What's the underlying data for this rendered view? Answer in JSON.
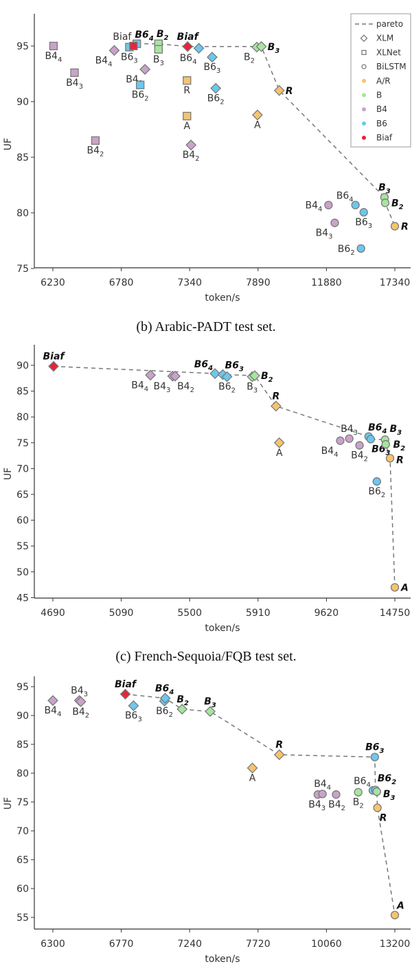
{
  "legend": {
    "placement": "top-right",
    "entries": [
      {
        "label": "pareto",
        "kind": "line"
      },
      {
        "label": "XLM",
        "kind": "diamond"
      },
      {
        "label": "XLNet",
        "kind": "square"
      },
      {
        "label": "BiLSTM",
        "kind": "circle"
      },
      {
        "label": "A/R",
        "kind": "dot",
        "group": "A/R"
      },
      {
        "label": "B",
        "kind": "dot",
        "group": "B"
      },
      {
        "label": "B4",
        "kind": "dot",
        "group": "B4"
      },
      {
        "label": "B6",
        "kind": "dot",
        "group": "B6"
      },
      {
        "label": "Biaf",
        "kind": "dot",
        "group": "Biaf"
      }
    ]
  },
  "colors": {
    "A/R": "#f7c46c",
    "B": "#a8e4a0",
    "B4": "#c9a3c9",
    "B6": "#6cc8ef",
    "Biaf": "#e2263c",
    "edge": "#7a7a7a",
    "pareto": "#777777"
  },
  "markers": {
    "XLM": "diamond",
    "XLNet": "square",
    "BiLSTM": "circle"
  },
  "chart_data": [
    {
      "type": "scatter",
      "title": "",
      "xlabel": "token/s",
      "ylabel": "UF",
      "xticks": [
        6230,
        6780,
        7340,
        7890,
        11880,
        17340
      ],
      "xscale": "piecewise (evenly spaced ticks)",
      "yticks": [
        75,
        80,
        85,
        90,
        95
      ],
      "ylim": [
        75,
        97.9
      ],
      "grid": false,
      "points": [
        {
          "m": "XLNet",
          "g": "B4",
          "t": "B4",
          "s": "4",
          "x": 6235,
          "y": 95.0,
          "b": false,
          "pos": "below"
        },
        {
          "m": "XLNet",
          "g": "B4",
          "t": "B4",
          "s": "3",
          "x": 6404,
          "y": 92.6,
          "b": false,
          "pos": "below"
        },
        {
          "m": "XLNet",
          "g": "B4",
          "t": "B4",
          "s": "2",
          "x": 6572,
          "y": 86.5,
          "b": false,
          "pos": "below"
        },
        {
          "m": "XLM",
          "g": "B4",
          "t": "B4",
          "s": "4",
          "x": 6724,
          "y": 94.6,
          "b": false,
          "pos": "below-left"
        },
        {
          "m": "XLNet",
          "g": "B6",
          "t": "B6",
          "s": "3",
          "x": 6846,
          "y": 94.9,
          "b": false,
          "pos": "below"
        },
        {
          "m": "XLNet",
          "g": "B6",
          "t": "B6",
          "s": "4",
          "x": 6907,
          "y": 95.2,
          "b": true,
          "pos": "above-right"
        },
        {
          "m": "XLNet",
          "g": "Biaf",
          "t": "Biaf",
          "s": "",
          "x": 6880,
          "y": 95.0,
          "b": false,
          "pos": "above-left"
        },
        {
          "m": "XLM",
          "g": "B4",
          "t": "B4",
          "s": "3",
          "x": 6974,
          "y": 92.9,
          "b": false,
          "pos": "below-left"
        },
        {
          "m": "XLNet",
          "g": "B6",
          "t": "B6",
          "s": "2",
          "x": 6935,
          "y": 91.5,
          "b": false,
          "pos": "below"
        },
        {
          "m": "XLNet",
          "g": "B",
          "t": "B",
          "s": "2",
          "x": 7085,
          "y": 95.2,
          "b": true,
          "pos": "above"
        },
        {
          "m": "XLNet",
          "g": "B",
          "t": "B",
          "s": "3",
          "x": 7085,
          "y": 94.7,
          "b": false,
          "pos": "below"
        },
        {
          "m": "XLNet",
          "g": "A/R",
          "t": "R",
          "s": "",
          "x": 7318,
          "y": 91.9,
          "b": false,
          "pos": "below"
        },
        {
          "m": "XLNet",
          "g": "A/R",
          "t": "A",
          "s": "",
          "x": 7318,
          "y": 88.7,
          "b": false,
          "pos": "below"
        },
        {
          "m": "XLM",
          "g": "Biaf",
          "t": "Biaf",
          "s": "",
          "x": 7323,
          "y": 94.95,
          "b": true,
          "pos": "above"
        },
        {
          "m": "XLM",
          "g": "B6",
          "t": "B6",
          "s": "4",
          "x": 7414,
          "y": 94.8,
          "b": false,
          "pos": "below-left"
        },
        {
          "m": "XLM",
          "g": "B6",
          "t": "B6",
          "s": "3",
          "x": 7521,
          "y": 94.0,
          "b": false,
          "pos": "below"
        },
        {
          "m": "XLM",
          "g": "B6",
          "t": "B6",
          "s": "2",
          "x": 7550,
          "y": 91.2,
          "b": false,
          "pos": "below"
        },
        {
          "m": "XLM",
          "g": "B4",
          "t": "B4",
          "s": "2",
          "x": 7351,
          "y": 86.1,
          "b": false,
          "pos": "below"
        },
        {
          "m": "XLM",
          "g": "A/R",
          "t": "A",
          "s": "",
          "x": 7885,
          "y": 88.8,
          "b": false,
          "pos": "below"
        },
        {
          "m": "XLM",
          "g": "B",
          "t": "B",
          "s": "2",
          "x": 7880,
          "y": 94.9,
          "b": false,
          "pos": "below-left"
        },
        {
          "m": "XLM",
          "g": "B",
          "t": "B",
          "s": "3",
          "x": 8084,
          "y": 94.95,
          "b": true,
          "pos": "right"
        },
        {
          "m": "XLM",
          "g": "A/R",
          "t": "R",
          "s": "",
          "x": 9130,
          "y": 91.0,
          "b": true,
          "pos": "right"
        },
        {
          "m": "BiLSTM",
          "g": "B4",
          "t": "B4",
          "s": "4",
          "x": 12045,
          "y": 80.7,
          "b": false,
          "pos": "left"
        },
        {
          "m": "BiLSTM",
          "g": "B4",
          "t": "B4",
          "s": "3",
          "x": 12542,
          "y": 79.1,
          "b": false,
          "pos": "below-left"
        },
        {
          "m": "BiLSTM",
          "g": "B6",
          "t": "B6",
          "s": "4",
          "x": 14196,
          "y": 80.7,
          "b": false,
          "pos": "above-left"
        },
        {
          "m": "BiLSTM",
          "g": "B6",
          "t": "B6",
          "s": "3",
          "x": 14857,
          "y": 80.05,
          "b": false,
          "pos": "below"
        },
        {
          "m": "BiLSTM",
          "g": "B6",
          "t": "B6",
          "s": "2",
          "x": 14637,
          "y": 76.8,
          "b": false,
          "pos": "left"
        },
        {
          "m": "BiLSTM",
          "g": "B",
          "t": "B",
          "s": "3",
          "x": 16513,
          "y": 81.4,
          "b": true,
          "pos": "above"
        },
        {
          "m": "BiLSTM",
          "g": "B",
          "t": "B",
          "s": "2",
          "x": 16570,
          "y": 80.9,
          "b": true,
          "pos": "right"
        },
        {
          "m": "BiLSTM",
          "g": "A/R",
          "t": "R",
          "s": "",
          "x": 17340,
          "y": 78.8,
          "b": true,
          "pos": "right"
        }
      ],
      "pareto": [
        [
          6907,
          95.2
        ],
        [
          7085,
          95.2
        ],
        [
          7323,
          94.95
        ],
        [
          8084,
          94.95
        ],
        [
          9130,
          91.0
        ],
        [
          16513,
          81.4
        ],
        [
          16570,
          80.9
        ],
        [
          17340,
          78.8
        ]
      ]
    },
    {
      "type": "scatter",
      "title": "(b) Arabic-PADT test set.",
      "xlabel": "token/s",
      "ylabel": "UF",
      "xticks": [
        4690,
        5090,
        5500,
        5910,
        9620,
        14750
      ],
      "xscale": "piecewise (evenly spaced ticks)",
      "yticks": [
        45,
        50,
        55,
        60,
        65,
        70,
        75,
        80,
        85,
        90
      ],
      "ylim": [
        45,
        94
      ],
      "grid": false,
      "points": [
        {
          "m": "XLM",
          "g": "Biaf",
          "t": "Biaf",
          "s": "",
          "x": 4694,
          "y": 89.8,
          "b": true,
          "pos": "above"
        },
        {
          "m": "XLM",
          "g": "B4",
          "t": "B4",
          "s": "4",
          "x": 5265,
          "y": 88.1,
          "b": false,
          "pos": "below-left"
        },
        {
          "m": "XLM",
          "g": "B4",
          "t": "B4",
          "s": "3",
          "x": 5398,
          "y": 87.9,
          "b": false,
          "pos": "below-left"
        },
        {
          "m": "XLM",
          "g": "B4",
          "t": "B4",
          "s": "2",
          "x": 5413,
          "y": 87.9,
          "b": false,
          "pos": "below-right"
        },
        {
          "m": "XLM",
          "g": "B6",
          "t": "B6",
          "s": "4",
          "x": 5652,
          "y": 88.4,
          "b": true,
          "pos": "above-left"
        },
        {
          "m": "XLM",
          "g": "B6",
          "t": "B6",
          "s": "3",
          "x": 5699,
          "y": 88.2,
          "b": true,
          "pos": "above-right"
        },
        {
          "m": "XLM",
          "g": "B6",
          "t": "B6",
          "s": "2",
          "x": 5724,
          "y": 87.8,
          "b": false,
          "pos": "below"
        },
        {
          "m": "XLM",
          "g": "B",
          "t": "B",
          "s": "3",
          "x": 5875,
          "y": 87.8,
          "b": false,
          "pos": "below"
        },
        {
          "m": "XLM",
          "g": "B",
          "t": "B",
          "s": "2",
          "x": 5890,
          "y": 88.0,
          "b": true,
          "pos": "right"
        },
        {
          "m": "XLM",
          "g": "A/R",
          "t": "R",
          "s": "",
          "x": 6883,
          "y": 82.1,
          "b": true,
          "pos": "above"
        },
        {
          "m": "XLM",
          "g": "A/R",
          "t": "A",
          "s": "",
          "x": 7063,
          "y": 75.0,
          "b": false,
          "pos": "below"
        },
        {
          "m": "BiLSTM",
          "g": "B4",
          "t": "B4",
          "s": "4",
          "x": 10656,
          "y": 75.4,
          "b": false,
          "pos": "below-left"
        },
        {
          "m": "BiLSTM",
          "g": "B4",
          "t": "B4",
          "s": "3",
          "x": 11330,
          "y": 75.8,
          "b": false,
          "pos": "above"
        },
        {
          "m": "BiLSTM",
          "g": "B4",
          "t": "B4",
          "s": "2",
          "x": 12100,
          "y": 74.5,
          "b": false,
          "pos": "below"
        },
        {
          "m": "BiLSTM",
          "g": "B6",
          "t": "B6",
          "s": "4",
          "x": 12780,
          "y": 76.2,
          "b": true,
          "pos": "above-right"
        },
        {
          "m": "BiLSTM",
          "g": "B6",
          "t": "B6",
          "s": "3",
          "x": 12940,
          "y": 75.7,
          "b": true,
          "pos": "below-right"
        },
        {
          "m": "BiLSTM",
          "g": "B6",
          "t": "B6",
          "s": "2",
          "x": 13400,
          "y": 67.5,
          "b": false,
          "pos": "below"
        },
        {
          "m": "BiLSTM",
          "g": "B",
          "t": "B",
          "s": "3",
          "x": 14020,
          "y": 75.6,
          "b": true,
          "pos": "above-right"
        },
        {
          "m": "BiLSTM",
          "g": "B",
          "t": "B",
          "s": "2",
          "x": 14070,
          "y": 74.7,
          "b": true,
          "pos": "right"
        },
        {
          "m": "BiLSTM",
          "g": "A/R",
          "t": "R",
          "s": "",
          "x": 14390,
          "y": 72.0,
          "b": true,
          "pos": "right"
        },
        {
          "m": "BiLSTM",
          "g": "A/R",
          "t": "A",
          "s": "",
          "x": 14750,
          "y": 47.0,
          "b": true,
          "pos": "right"
        }
      ],
      "pareto": [
        [
          4694,
          89.8
        ],
        [
          5652,
          88.4
        ],
        [
          5699,
          88.2
        ],
        [
          5890,
          88.0
        ],
        [
          6883,
          82.1
        ],
        [
          12780,
          76.2
        ],
        [
          12940,
          75.7
        ],
        [
          14020,
          75.6
        ],
        [
          14070,
          74.7
        ],
        [
          14390,
          72.0
        ],
        [
          14750,
          47.0
        ]
      ]
    },
    {
      "type": "scatter",
      "title": "(c) French-Sequoia/FQB test set.",
      "xlabel": "token/s",
      "ylabel": "UF",
      "xticks": [
        6300,
        6770,
        7240,
        7720,
        10060,
        13200
      ],
      "xscale": "piecewise (evenly spaced ticks)",
      "yticks": [
        55,
        60,
        65,
        70,
        75,
        80,
        85,
        90,
        95
      ],
      "ylim": [
        53,
        96.8
      ],
      "grid": false,
      "points": [
        {
          "m": "XLM",
          "g": "B4",
          "t": "B4",
          "s": "4",
          "x": 6300,
          "y": 92.6,
          "b": false,
          "pos": "below"
        },
        {
          "m": "XLM",
          "g": "B4",
          "t": "B4",
          "s": "3",
          "x": 6482,
          "y": 92.6,
          "b": false,
          "pos": "above"
        },
        {
          "m": "XLM",
          "g": "B4",
          "t": "B4",
          "s": "2",
          "x": 6492,
          "y": 92.4,
          "b": false,
          "pos": "below"
        },
        {
          "m": "XLM",
          "g": "Biaf",
          "t": "Biaf",
          "s": "",
          "x": 6798,
          "y": 93.7,
          "b": true,
          "pos": "above"
        },
        {
          "m": "XLM",
          "g": "B6",
          "t": "B6",
          "s": "3",
          "x": 6854,
          "y": 91.7,
          "b": false,
          "pos": "below"
        },
        {
          "m": "XLM",
          "g": "B6",
          "t": "B6",
          "s": "2",
          "x": 7067,
          "y": 92.5,
          "b": false,
          "pos": "below"
        },
        {
          "m": "XLM",
          "g": "B6",
          "t": "B6",
          "s": "4",
          "x": 7072,
          "y": 93.0,
          "b": true,
          "pos": "above"
        },
        {
          "m": "XLM",
          "g": "B",
          "t": "B",
          "s": "2",
          "x": 7188,
          "y": 91.1,
          "b": true,
          "pos": "above"
        },
        {
          "m": "XLM",
          "g": "B",
          "t": "B",
          "s": "3",
          "x": 7384,
          "y": 90.7,
          "b": true,
          "pos": "above"
        },
        {
          "m": "XLM",
          "g": "A/R",
          "t": "R",
          "s": "",
          "x": 8447,
          "y": 83.2,
          "b": true,
          "pos": "above"
        },
        {
          "m": "XLM",
          "g": "A/R",
          "t": "A",
          "s": "",
          "x": 7680,
          "y": 80.9,
          "b": false,
          "pos": "below"
        },
        {
          "m": "BiLSTM",
          "g": "B6",
          "t": "B6",
          "s": "3",
          "x": 12280,
          "y": 82.8,
          "b": true,
          "pos": "above"
        },
        {
          "m": "BiLSTM",
          "g": "B4",
          "t": "B4",
          "s": "3",
          "x": 9765,
          "y": 76.3,
          "b": false,
          "pos": "below"
        },
        {
          "m": "BiLSTM",
          "g": "B4",
          "t": "B4",
          "s": "4",
          "x": 9925,
          "y": 76.4,
          "b": false,
          "pos": "above"
        },
        {
          "m": "BiLSTM",
          "g": "B4",
          "t": "B4",
          "s": "2",
          "x": 10504,
          "y": 76.3,
          "b": false,
          "pos": "below"
        },
        {
          "m": "BiLSTM",
          "g": "B",
          "t": "B",
          "s": "2",
          "x": 11520,
          "y": 76.7,
          "b": false,
          "pos": "below"
        },
        {
          "m": "BiLSTM",
          "g": "B6",
          "t": "B6",
          "s": "4",
          "x": 12190,
          "y": 77.0,
          "b": false,
          "pos": "above-left"
        },
        {
          "m": "BiLSTM",
          "g": "B6",
          "t": "B6",
          "s": "2",
          "x": 12310,
          "y": 77.1,
          "b": true,
          "pos": "above-right"
        },
        {
          "m": "BiLSTM",
          "g": "B",
          "t": "B",
          "s": "3",
          "x": 12375,
          "y": 76.8,
          "b": true,
          "pos": "right"
        },
        {
          "m": "BiLSTM",
          "g": "A/R",
          "t": "R",
          "s": "",
          "x": 12400,
          "y": 74.0,
          "b": true,
          "pos": "below-right"
        },
        {
          "m": "BiLSTM",
          "g": "A/R",
          "t": "A",
          "s": "",
          "x": 13200,
          "y": 55.4,
          "b": true,
          "pos": "above-right"
        }
      ],
      "pareto": [
        [
          6798,
          93.7
        ],
        [
          7072,
          93.0
        ],
        [
          7188,
          91.1
        ],
        [
          7384,
          90.7
        ],
        [
          8447,
          83.2
        ],
        [
          12280,
          82.8
        ],
        [
          12310,
          77.1
        ],
        [
          12375,
          76.8
        ],
        [
          12400,
          74.0
        ],
        [
          13200,
          55.4
        ]
      ]
    }
  ]
}
